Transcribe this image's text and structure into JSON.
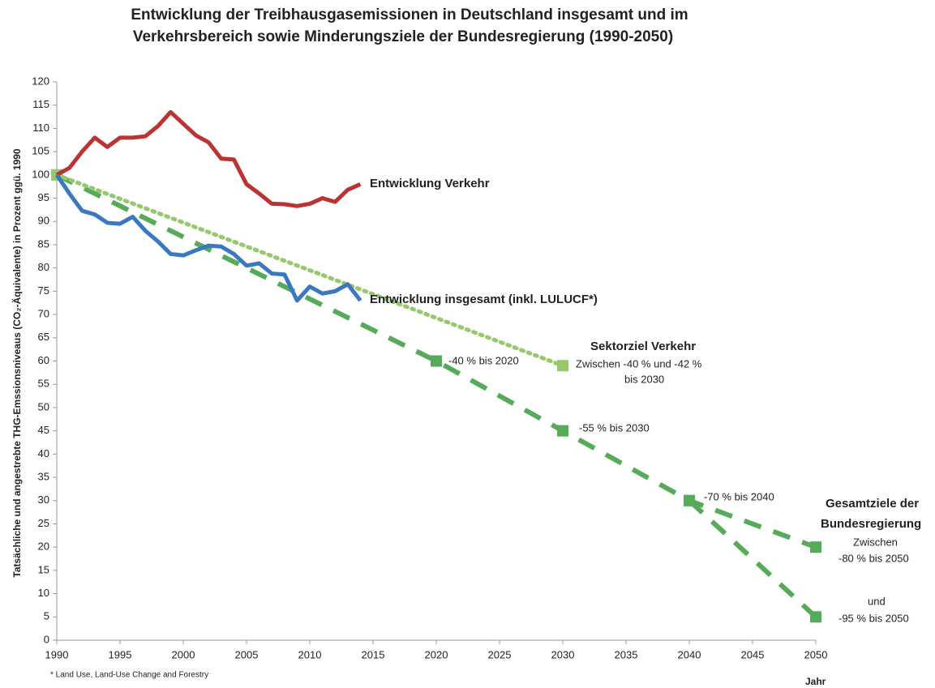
{
  "chart_data": {
    "type": "line",
    "title": [
      "Entwicklung der Treibhausgasemissionen in Deutschland insgesamt und im",
      "Verkehrsbereich sowie Minderungsziele der Bundesregierung (1990-2050)"
    ],
    "xlabel": "Jahr",
    "ylabel": "Tatsächliche und angestrebte THG-Emssionsniveaus (CO₂-Äquivalente) in Prozent ggü. 1990",
    "footnote": "* Land Use, Land-Use Change and Forestry",
    "xlim": [
      1990,
      2050
    ],
    "xticks": [
      1990,
      1995,
      2000,
      2005,
      2010,
      2015,
      2020,
      2025,
      2030,
      2035,
      2040,
      2045,
      2050
    ],
    "ylim": [
      0,
      120
    ],
    "yticks": [
      0,
      5,
      10,
      15,
      20,
      25,
      30,
      35,
      40,
      45,
      50,
      55,
      60,
      65,
      70,
      75,
      80,
      85,
      90,
      95,
      100,
      105,
      110,
      115,
      120
    ],
    "grid": false,
    "series": [
      {
        "name": "Gesamtziele der Bundesregierung",
        "color": "#56ab5a",
        "style": "dashed",
        "markers": true,
        "x": [
          1990,
          2020,
          2030,
          2040,
          2050
        ],
        "values": [
          100,
          60,
          45,
          30,
          20
        ]
      },
      {
        "color": "#56ab5a",
        "style": "dashed",
        "markers": true,
        "x": [
          2040,
          2050
        ],
        "values": [
          30,
          5
        ]
      },
      {
        "name": "Sektorziel Verkehr",
        "color": "#96c86e",
        "style": "dotted",
        "markers": true,
        "x": [
          1990,
          2030
        ],
        "values": [
          100,
          59
        ]
      },
      {
        "name": "Entwicklung Verkehr",
        "color": "#bb3333",
        "style": "solid",
        "markers": false,
        "x": [
          1990,
          1991,
          1992,
          1993,
          1994,
          1995,
          1996,
          1997,
          1998,
          1999,
          2000,
          2001,
          2002,
          2003,
          2004,
          2005,
          2006,
          2007,
          2008,
          2009,
          2010,
          2011,
          2012,
          2013,
          2014
        ],
        "values": [
          100,
          101.5,
          105,
          108,
          106,
          108,
          108,
          108.3,
          110.5,
          113.5,
          111,
          108.5,
          107,
          103.5,
          103.3,
          98,
          96,
          93.8,
          93.7,
          93.3,
          93.8,
          95,
          94.2,
          96.8,
          98
        ]
      },
      {
        "name": "Entwicklung insgesamt (inkl. LULUCF*)",
        "color": "#3b78c2",
        "style": "solid",
        "markers": false,
        "x": [
          1990,
          1991,
          1992,
          1993,
          1994,
          1995,
          1996,
          1997,
          1998,
          1999,
          2000,
          2001,
          2002,
          2003,
          2004,
          2005,
          2006,
          2007,
          2008,
          2009,
          2010,
          2011,
          2012,
          2013,
          2014
        ],
        "values": [
          100,
          96,
          92.3,
          91.5,
          89.7,
          89.5,
          91,
          88,
          85.7,
          83,
          82.7,
          83.8,
          84.8,
          84.6,
          83,
          80.5,
          81,
          78.8,
          78.6,
          73,
          76,
          74.5,
          75,
          76.5,
          73
        ]
      }
    ],
    "annotations": [
      "Entwicklung Verkehr",
      "Entwicklung insgesamt (inkl. LULUCF*)",
      "Sektorziel Verkehr",
      "Zwischen  -40 %  und -42 %",
      "bis  2030",
      "-40 % bis 2020",
      "-55 % bis 2030",
      "-70 % bis 2040",
      "Gesamtziele der",
      "Bundesregierung",
      "Zwischen",
      "-80 % bis 2050",
      "und",
      "-95 % bis 2050"
    ]
  }
}
